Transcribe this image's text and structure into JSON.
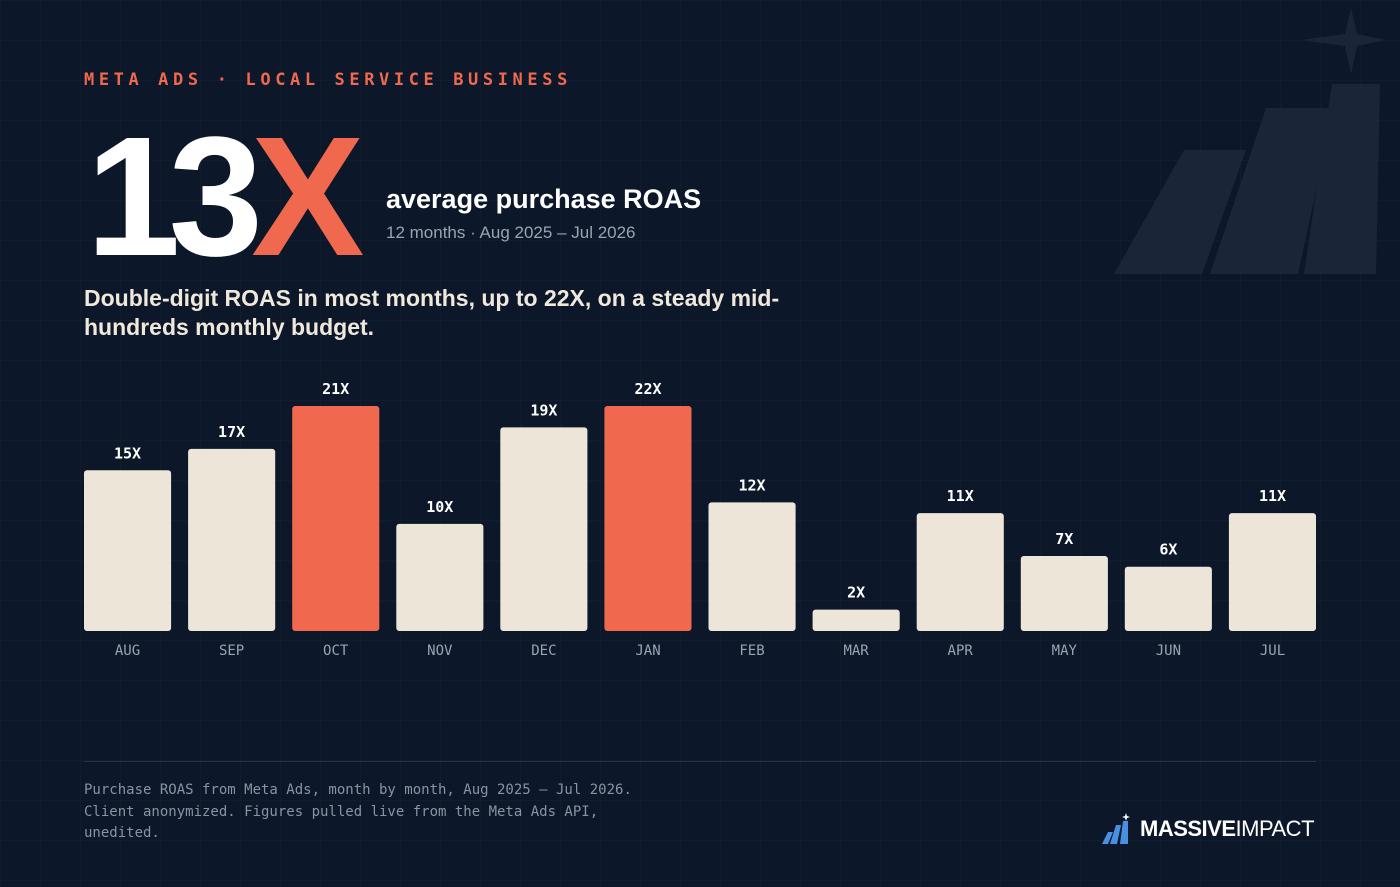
{
  "header": {
    "eyebrow_left": "META ADS",
    "eyebrow_sep": "·",
    "eyebrow_right": "LOCAL SERVICE BUSINESS"
  },
  "headline": {
    "number": "13",
    "unit": "X",
    "label": "average purchase ROAS",
    "sub": "12 months · Aug 2025 – Jul 2026"
  },
  "summary": "Double-digit ROAS in most months, up to 22X, on a steady mid-hundreds monthly budget.",
  "chart_data": {
    "type": "bar",
    "categories": [
      "AUG",
      "SEP",
      "OCT",
      "NOV",
      "DEC",
      "JAN",
      "FEB",
      "MAR",
      "APR",
      "MAY",
      "JUN",
      "JUL"
    ],
    "values": [
      15,
      17,
      21,
      10,
      19,
      22,
      12,
      2,
      11,
      7,
      6,
      11
    ],
    "value_labels": [
      "15X",
      "17X",
      "21X",
      "10X",
      "19X",
      "22X",
      "12X",
      "2X",
      "11X",
      "7X",
      "6X",
      "11X"
    ],
    "highlighted": [
      "OCT",
      "JAN"
    ],
    "ylim": [
      0,
      21
    ],
    "grid": false,
    "legend": false,
    "colors": {
      "bar": "#ede6d8",
      "highlight": "#f0684d"
    }
  },
  "footer": {
    "lines": [
      "Purchase ROAS from Meta Ads, month by month, Aug 2025 – Jul 2026.",
      "Client anonymized. Figures pulled live from the Meta Ads API,",
      "unedited."
    ]
  },
  "brand": {
    "logo_icon": "massive-impact-bars-icon",
    "name_bold": "MASSIVE",
    "name_light": "IMPACT"
  },
  "colors": {
    "background": "#0c1729",
    "accent": "#f0684d",
    "cream": "#ede6d8",
    "muted": "#9aa3b2"
  }
}
